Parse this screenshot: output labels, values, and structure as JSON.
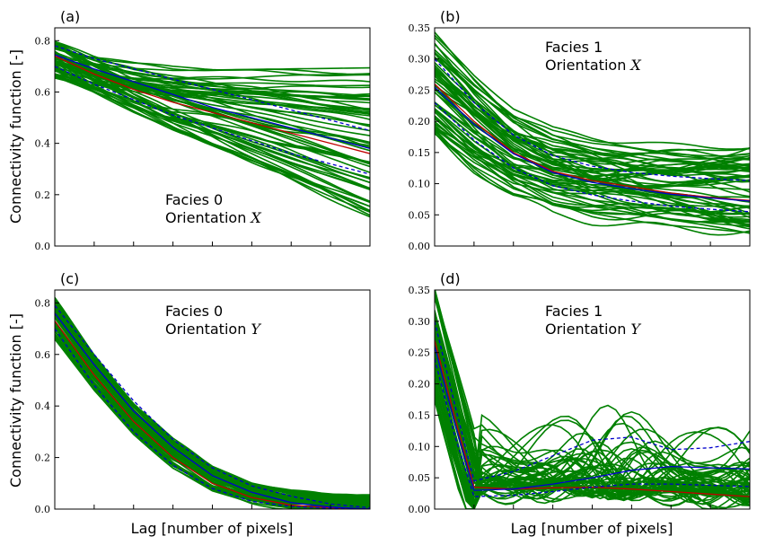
{
  "colors": {
    "ensemble": "#008000",
    "mean": "#c00000",
    "reference": "#0000cc",
    "axis": "#000000"
  },
  "ylabel": "Connectivity function [-]",
  "xlabel": "Lag [number of pixels]",
  "chart_data": [
    {
      "type": "line",
      "panel_label": "(a)",
      "annotation": [
        "Facies 0",
        "Orientation ",
        "X"
      ],
      "ylim": [
        0,
        0.85
      ],
      "yticks": [
        "0.0",
        "0.2",
        "0.4",
        "0.6",
        "0.8"
      ],
      "ytick_values": [
        0,
        0.2,
        0.4,
        0.6,
        0.8
      ],
      "x": [
        0,
        1,
        2,
        3,
        4,
        5,
        6,
        7,
        8
      ],
      "series": [
        {
          "role": "mean",
          "values": [
            0.74,
            0.67,
            0.61,
            0.56,
            0.52,
            0.48,
            0.44,
            0.4,
            0.36
          ]
        },
        {
          "role": "reference",
          "values": [
            0.745,
            0.69,
            0.64,
            0.59,
            0.54,
            0.5,
            0.46,
            0.42,
            0.38
          ]
        },
        {
          "role": "reference-dashed",
          "values": [
            0.7,
            0.63,
            0.57,
            0.51,
            0.46,
            0.41,
            0.36,
            0.32,
            0.28
          ]
        },
        {
          "role": "reference-dashed",
          "values": [
            0.78,
            0.73,
            0.69,
            0.65,
            0.61,
            0.57,
            0.53,
            0.49,
            0.45
          ]
        }
      ],
      "ensemble_range": {
        "start": [
          0.66,
          0.8
        ],
        "end": [
          0.11,
          0.72
        ]
      }
    },
    {
      "type": "line",
      "panel_label": "(b)",
      "annotation": [
        "Facies 1",
        "Orientation ",
        "X"
      ],
      "ylim": [
        0,
        0.35
      ],
      "yticks": [
        "0.00",
        "0.05",
        "0.10",
        "0.15",
        "0.20",
        "0.25",
        "0.30",
        "0.35"
      ],
      "ytick_values": [
        0,
        0.05,
        0.1,
        0.15,
        0.2,
        0.25,
        0.3,
        0.35
      ],
      "x": [
        0,
        1,
        2,
        3,
        4,
        5,
        6,
        7,
        8
      ],
      "series": [
        {
          "role": "mean",
          "values": [
            0.26,
            0.2,
            0.15,
            0.12,
            0.105,
            0.095,
            0.085,
            0.078,
            0.073
          ]
        },
        {
          "role": "reference",
          "values": [
            0.255,
            0.195,
            0.148,
            0.118,
            0.102,
            0.092,
            0.083,
            0.077,
            0.072
          ]
        },
        {
          "role": "reference-dashed",
          "values": [
            0.23,
            0.17,
            0.125,
            0.097,
            0.082,
            0.072,
            0.064,
            0.059,
            0.055
          ]
        },
        {
          "role": "reference-dashed",
          "values": [
            0.3,
            0.23,
            0.178,
            0.145,
            0.128,
            0.118,
            0.112,
            0.108,
            0.105
          ]
        }
      ],
      "ensemble_range": {
        "start": [
          0.18,
          0.34
        ],
        "end": [
          0.02,
          0.16
        ]
      }
    },
    {
      "type": "line",
      "panel_label": "(c)",
      "annotation": [
        "Facies 0",
        "Orientation ",
        "Y"
      ],
      "ylim": [
        0,
        0.85
      ],
      "yticks": [
        "0.0",
        "0.2",
        "0.4",
        "0.6",
        "0.8"
      ],
      "ytick_values": [
        0,
        0.2,
        0.4,
        0.6,
        0.8
      ],
      "x": [
        0,
        1,
        2,
        3,
        4,
        5,
        6,
        7,
        8
      ],
      "series": [
        {
          "role": "mean",
          "values": [
            0.73,
            0.52,
            0.34,
            0.2,
            0.1,
            0.045,
            0.015,
            0.005,
            0.0
          ]
        },
        {
          "role": "reference",
          "values": [
            0.76,
            0.56,
            0.38,
            0.24,
            0.13,
            0.065,
            0.025,
            0.008,
            0.0
          ]
        },
        {
          "role": "reference-dashed",
          "values": [
            0.7,
            0.48,
            0.3,
            0.17,
            0.08,
            0.03,
            0.01,
            0.003,
            0.0
          ]
        },
        {
          "role": "reference-dashed",
          "values": [
            0.79,
            0.6,
            0.42,
            0.27,
            0.16,
            0.09,
            0.05,
            0.02,
            0.005
          ]
        }
      ],
      "ensemble_range": {
        "start": [
          0.66,
          0.82
        ],
        "end": [
          0.0,
          0.05
        ]
      }
    },
    {
      "type": "line",
      "panel_label": "(d)",
      "annotation": [
        "Facies 1",
        "Orientation ",
        "Y"
      ],
      "ylim": [
        0,
        0.35
      ],
      "yticks": [
        "0.00",
        "0.05",
        "0.10",
        "0.15",
        "0.20",
        "0.25",
        "0.30",
        "0.35"
      ],
      "ytick_values": [
        0,
        0.05,
        0.1,
        0.15,
        0.2,
        0.25,
        0.3,
        0.35
      ],
      "x": [
        0,
        0.5,
        1,
        2,
        3,
        4,
        5,
        6,
        7,
        8
      ],
      "series": [
        {
          "role": "mean",
          "values": [
            0.27,
            0.15,
            0.035,
            0.032,
            0.034,
            0.035,
            0.032,
            0.028,
            0.024,
            0.02
          ]
        },
        {
          "role": "reference",
          "values": [
            0.26,
            0.14,
            0.03,
            0.032,
            0.04,
            0.05,
            0.062,
            0.068,
            0.066,
            0.064
          ]
        },
        {
          "role": "reference-dashed",
          "values": [
            0.24,
            0.12,
            0.02,
            0.022,
            0.028,
            0.035,
            0.04,
            0.04,
            0.038,
            0.036
          ]
        },
        {
          "role": "reference-dashed",
          "values": [
            0.3,
            0.17,
            0.045,
            0.06,
            0.085,
            0.11,
            0.115,
            0.095,
            0.098,
            0.108
          ]
        }
      ],
      "ensemble_range": {
        "start": [
          0.18,
          0.35
        ],
        "end": [
          0.0,
          0.15
        ]
      }
    }
  ]
}
